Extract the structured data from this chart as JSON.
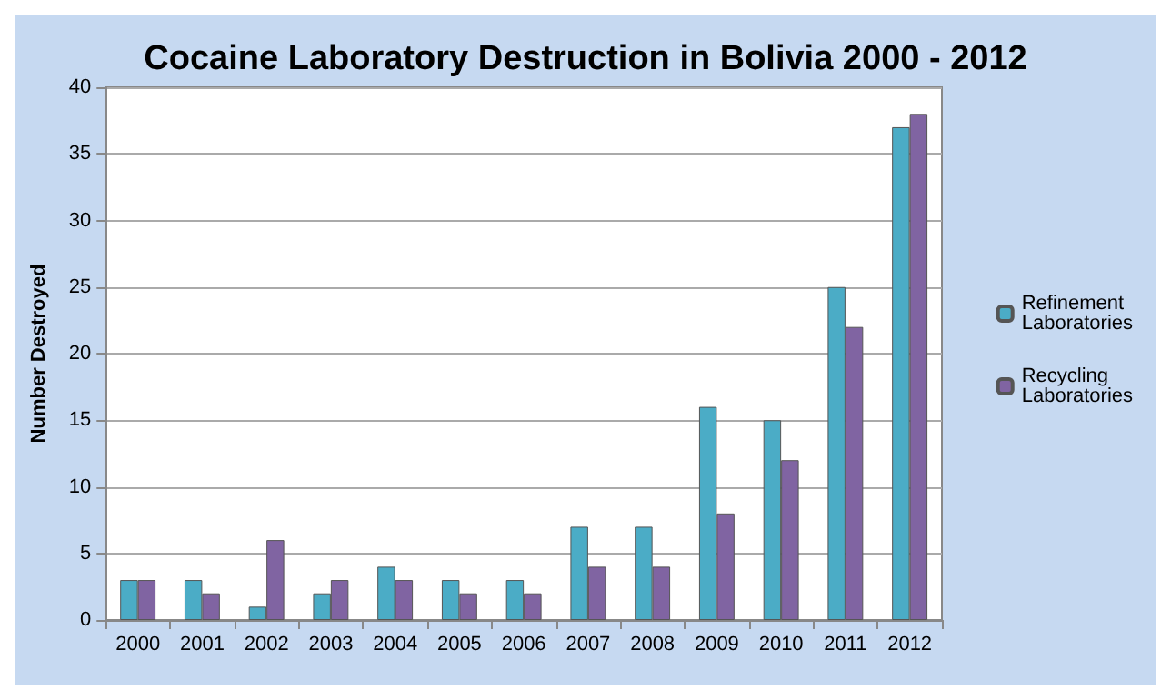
{
  "chart_data": {
    "type": "bar",
    "title": "Cocaine Laboratory Destruction in Bolivia 2000 - 2012",
    "ylabel": "Number Destroyed",
    "categories": [
      "2000",
      "2001",
      "2002",
      "2003",
      "2004",
      "2005",
      "2006",
      "2007",
      "2008",
      "2009",
      "2010",
      "2011",
      "2012"
    ],
    "series": [
      {
        "name": "Refinement Laboratories",
        "color": "#4bacc6",
        "values": [
          3,
          3,
          1,
          2,
          4,
          3,
          3,
          7,
          7,
          16,
          15,
          25,
          37
        ]
      },
      {
        "name": "Recycling Laboratories",
        "color": "#8064a2",
        "values": [
          3,
          2,
          6,
          3,
          3,
          2,
          2,
          4,
          4,
          8,
          12,
          22,
          38
        ]
      }
    ],
    "ylim": [
      0,
      40
    ],
    "yticks": [
      0,
      5,
      10,
      15,
      20,
      25,
      30,
      35,
      40
    ],
    "grid": "y",
    "legend": "right"
  }
}
